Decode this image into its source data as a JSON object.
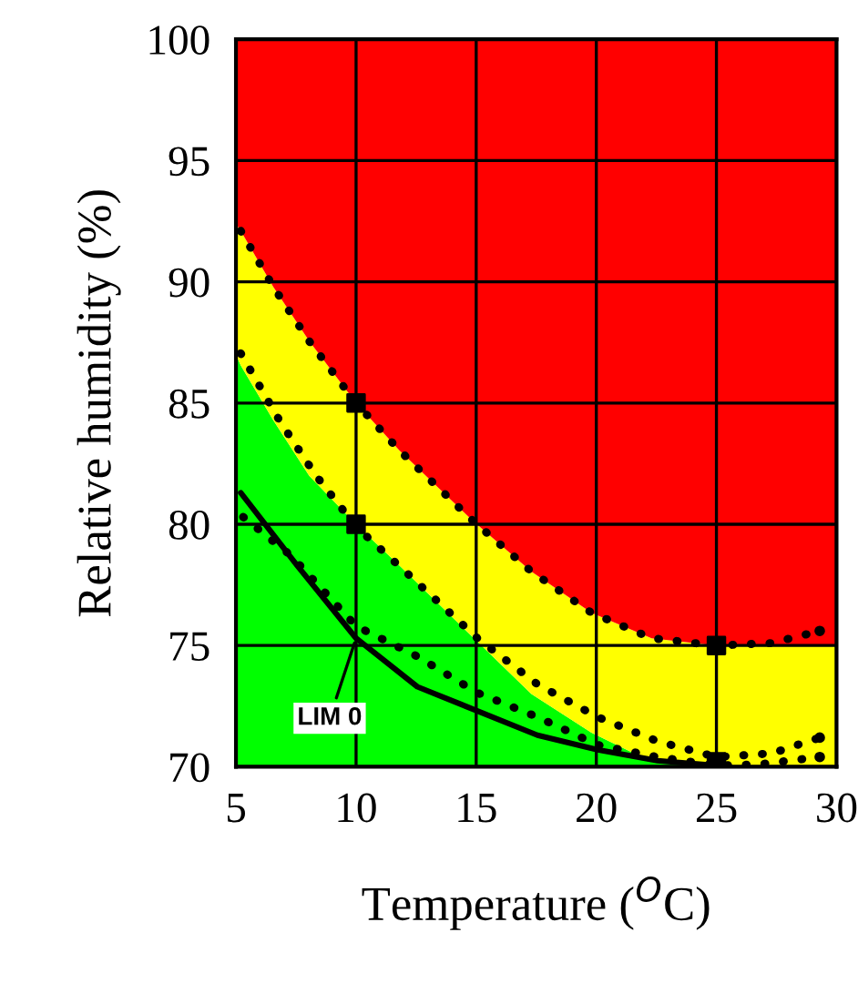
{
  "chart_data": {
    "type": "line",
    "xlabel": "Temperature ($^{O}$C)",
    "ylabel": "Relative humidity (%)",
    "xlim": [
      5,
      30
    ],
    "ylim": [
      70,
      100
    ],
    "xticks": [
      5,
      10,
      15,
      20,
      25,
      30
    ],
    "yticks": [
      70,
      75,
      80,
      85,
      90,
      95,
      100
    ],
    "grid": true,
    "legend": false,
    "annotations": [
      {
        "text": "LIM 0",
        "x": 10,
        "y": 75.3
      }
    ],
    "series": [
      {
        "type": "area",
        "color": "#00ff00",
        "x": [
          5,
          5.2,
          6.55,
          8.05,
          10,
          11.8,
          14.8,
          17.3,
          19.8,
          22.3,
          25,
          30
        ],
        "values": [
          87,
          86.55,
          84.3,
          82,
          80,
          78.3,
          75.4,
          73,
          71.4,
          70.2,
          70,
          70
        ]
      },
      {
        "type": "area",
        "color": "#ffff00",
        "x": [
          5,
          5.2,
          6.55,
          8.05,
          10,
          11.8,
          14.8,
          17.3,
          19.8,
          22.3,
          25,
          30
        ],
        "values": [
          92.4,
          92.1,
          89.8,
          87.55,
          85,
          83.05,
          80.2,
          78.05,
          76.35,
          75.3,
          75,
          75
        ]
      },
      {
        "type": "area",
        "color": "#ff0000",
        "x": [
          5,
          5.2,
          6.55,
          8.05,
          10,
          11.8,
          14.8,
          17.3,
          19.8,
          22.3,
          25,
          30
        ],
        "values": [
          100,
          100,
          100,
          100,
          100,
          100,
          100,
          100,
          100,
          100,
          100,
          100
        ]
      },
      {
        "color": "#000000",
        "line_style": "dotted",
        "x": [
          5.2,
          6.55,
          8.05,
          10,
          11.8,
          14.8,
          17.3,
          19.8,
          22.3,
          25,
          27.3,
          29.3
        ],
        "values": [
          92.1,
          89.8,
          87.55,
          85,
          83.05,
          80.2,
          78.05,
          76.35,
          75.3,
          75,
          75.1,
          75.6
        ]
      },
      {
        "color": "#000000",
        "line_style": "dotted",
        "x": [
          5.2,
          6.8,
          8.3,
          10,
          12.05,
          15.05,
          17.55,
          20.05,
          22.55,
          25,
          27.3,
          29.3
        ],
        "values": [
          87.05,
          84.3,
          82.05,
          79.9,
          78.05,
          75.3,
          73.4,
          72.05,
          71.05,
          70.4,
          70.55,
          71.2
        ]
      },
      {
        "color": "#000000",
        "line_style": "dotted",
        "x": [
          5.3,
          7.3,
          10,
          12.55,
          15.05,
          17.55,
          20.05,
          22.55,
          25,
          26.8,
          29.3
        ],
        "values": [
          80.3,
          78.7,
          75.8,
          74.55,
          73.05,
          72.05,
          70.9,
          70.4,
          70.05,
          70.1,
          70.4
        ]
      },
      {
        "color": "#000000",
        "line_style": "solid",
        "x": [
          5.2,
          7.55,
          10,
          12.55,
          15.05,
          17.55,
          20.05,
          22.55,
          25
        ],
        "values": [
          81.3,
          78.3,
          75.3,
          73.3,
          72.3,
          71.3,
          70.7,
          70.25,
          70.05
        ]
      },
      {
        "type": "scatter",
        "color": "#000000",
        "marker": "square",
        "x": [
          10,
          10,
          25,
          25
        ],
        "values": [
          85,
          80,
          75,
          70.2
        ]
      }
    ]
  }
}
